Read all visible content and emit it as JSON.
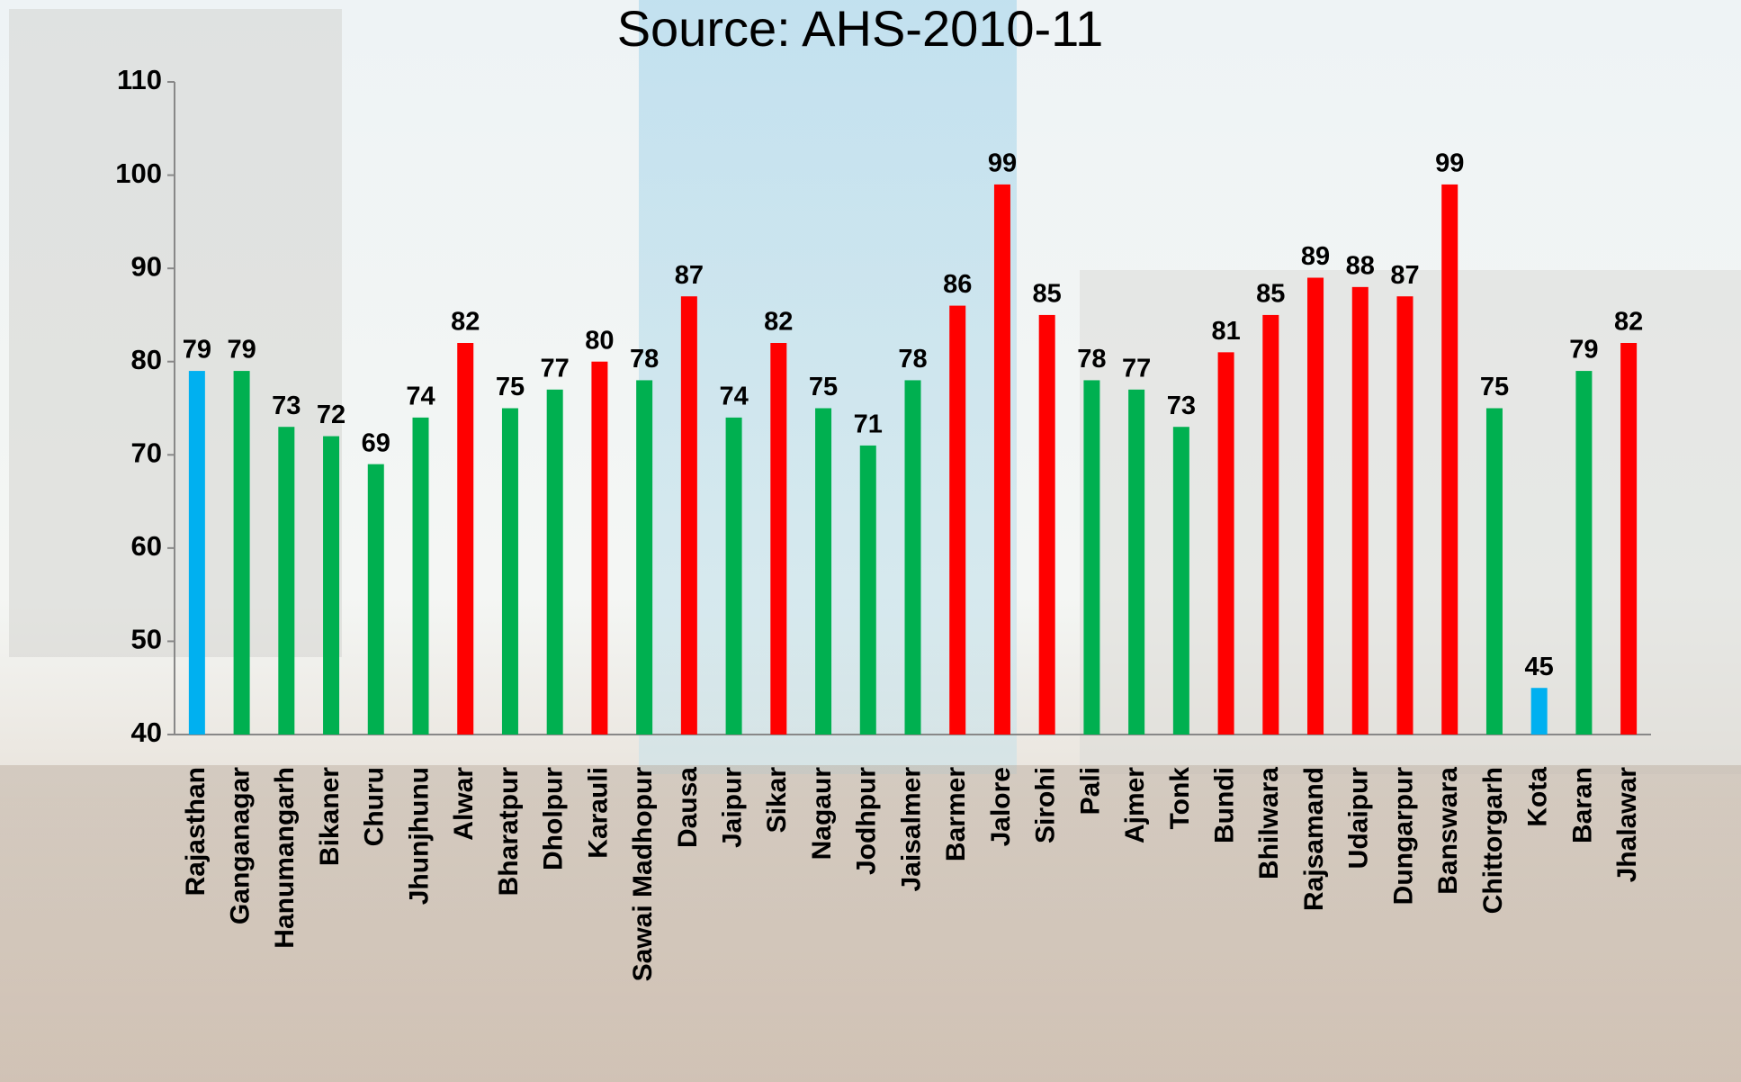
{
  "chart_data": {
    "type": "bar",
    "title": "Source: AHS-2010-11",
    "categories": [
      "Rajasthan",
      "Ganganagar",
      "Hanumangarh",
      "Bikaner",
      "Churu",
      "Jhunjhunu",
      "Alwar",
      "Bharatpur",
      "Dholpur",
      "Karauli",
      "Sawai Madhopur",
      "Dausa",
      "Jaipur",
      "Sikar",
      "Nagaur",
      "Jodhpur",
      "Jaisalmer",
      "Barmer",
      "Jalore",
      "Sirohi",
      "Pali",
      "Ajmer",
      "Tonk",
      "Bundi",
      "Bhilwara",
      "Rajsamand",
      "Udaipur",
      "Dungarpur",
      "Banswara",
      "Chittorgarh",
      "Kota",
      "Baran",
      "Jhalawar"
    ],
    "values": [
      79,
      79,
      73,
      72,
      69,
      74,
      82,
      75,
      77,
      80,
      78,
      87,
      74,
      82,
      75,
      71,
      78,
      86,
      99,
      85,
      78,
      77,
      73,
      81,
      85,
      89,
      88,
      87,
      99,
      75,
      45,
      79,
      82
    ],
    "colors": [
      "#00b0f0",
      "#00b050",
      "#00b050",
      "#00b050",
      "#00b050",
      "#00b050",
      "#ff0000",
      "#00b050",
      "#00b050",
      "#ff0000",
      "#00b050",
      "#ff0000",
      "#00b050",
      "#ff0000",
      "#00b050",
      "#00b050",
      "#00b050",
      "#ff0000",
      "#ff0000",
      "#ff0000",
      "#00b050",
      "#00b050",
      "#00b050",
      "#ff0000",
      "#ff0000",
      "#ff0000",
      "#ff0000",
      "#ff0000",
      "#ff0000",
      "#00b050",
      "#00b0f0",
      "#00b050",
      "#ff0000"
    ],
    "ylim": [
      40,
      110
    ],
    "yticks": [
      40,
      50,
      60,
      70,
      80,
      90,
      100,
      110
    ],
    "grid": false
  }
}
